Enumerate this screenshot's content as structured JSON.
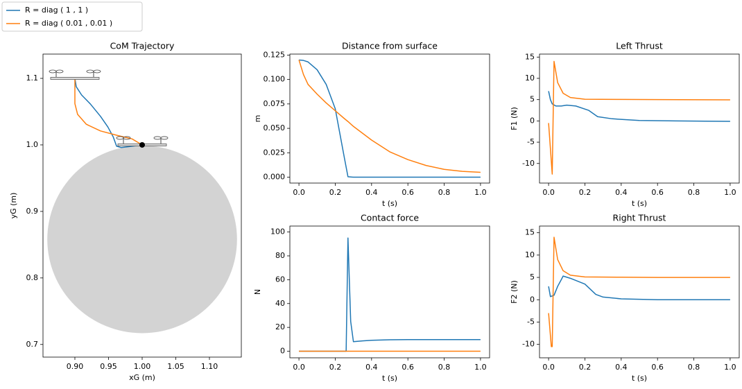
{
  "chart_data": [
    {
      "type": "line",
      "title": "CoM Trajectory",
      "xlabel": "xG (m)",
      "ylabel": "yG (m)",
      "xlim": [
        0.8526,
        1.1474
      ],
      "ylim": [
        0.681,
        1.1365
      ],
      "xticks": [
        {
          "value": 0.9,
          "label": "0.90"
        },
        0.95,
        {
          "value": 1.0,
          "label": "1.00"
        },
        1.05,
        {
          "value": 1.1,
          "label": "1.10"
        }
      ],
      "yticks": [
        0.7,
        0.8,
        0.9,
        {
          "value": 1.0,
          "label": "1.0"
        },
        1.1
      ],
      "circle": {
        "x": 1.0,
        "y": 0.858,
        "r": 0.141,
        "color": "#d3d3d3"
      },
      "series": [
        {
          "name": "R = diag ( 1 , 1 )",
          "color": "#1f77b4",
          "x": [
            0.9,
            0.902,
            0.91,
            0.923,
            0.938,
            0.949,
            0.957,
            0.962,
            0.969,
            0.985,
            1.0
          ],
          "values": [
            1.1,
            1.0875,
            1.075,
            1.0615,
            1.043,
            1.027,
            1.012,
            0.998,
            0.996,
            0.998,
            1.0
          ]
        },
        {
          "name": "R = diag ( 0.01 , 0.01 )",
          "color": "#ff7f0e",
          "x": [
            0.9,
            0.9,
            0.904,
            0.917,
            0.938,
            0.964,
            0.985,
            1.0
          ],
          "values": [
            1.1,
            1.062,
            1.046,
            1.031,
            1.021,
            1.014,
            1.009,
            1.0
          ]
        }
      ]
    },
    {
      "type": "line",
      "title": "Distance from surface",
      "xlabel": "t (s)",
      "ylabel": "m",
      "xlim": [
        -0.05,
        1.05
      ],
      "ylim": [
        -0.006,
        0.126
      ],
      "xticks": [
        {
          "value": 0,
          "label": "0.0"
        },
        0.2,
        0.4,
        0.6,
        0.8,
        {
          "value": 1,
          "label": "1.0"
        }
      ],
      "yticks": [
        {
          "value": 0,
          "label": "0.000"
        },
        0.025,
        {
          "value": 0.05,
          "label": "0.050"
        },
        0.075,
        {
          "value": 0.1,
          "label": "0.100"
        },
        0.125
      ],
      "x": [
        0,
        0.025,
        0.05,
        0.1,
        0.15,
        0.2,
        0.25,
        0.27,
        0.3,
        0.4,
        0.5,
        0.6,
        0.7,
        0.8,
        0.9,
        1.0
      ],
      "series": [
        {
          "color": "#1f77b4",
          "values": [
            0.12,
            0.1195,
            0.118,
            0.11,
            0.095,
            0.07,
            0.02,
            0.0005,
            0,
            0,
            0,
            0,
            0,
            0,
            0,
            0
          ]
        },
        {
          "color": "#ff7f0e",
          "values": [
            0.12,
            0.105,
            0.095,
            0.085,
            0.076,
            0.068,
            0.06,
            0.057,
            0.052,
            0.038,
            0.026,
            0.018,
            0.012,
            0.008,
            0.006,
            0.005
          ]
        }
      ]
    },
    {
      "type": "line",
      "title": "Contact force",
      "xlabel": "t (s)",
      "ylabel": "N",
      "xlim": [
        -0.05,
        1.05
      ],
      "ylim": [
        -5.5,
        105
      ],
      "xticks": [
        {
          "value": 0,
          "label": "0.0"
        },
        0.2,
        0.4,
        0.6,
        0.8,
        {
          "value": 1,
          "label": "1.0"
        }
      ],
      "yticks": [
        0,
        20,
        40,
        60,
        80,
        100
      ],
      "x": [
        0,
        0.26,
        0.27,
        0.285,
        0.3,
        0.35,
        0.4,
        0.5,
        0.6,
        0.8,
        1.0
      ],
      "series": [
        {
          "color": "#1f77b4",
          "values": [
            0,
            0,
            95,
            25,
            8,
            8.7,
            9.2,
            9.6,
            9.8,
            9.8,
            9.8
          ]
        },
        {
          "color": "#ff7f0e",
          "values": [
            0,
            0,
            0,
            0,
            0,
            0,
            0,
            0,
            0,
            0,
            0
          ]
        }
      ]
    },
    {
      "type": "line",
      "title": "Left Thrust",
      "xlabel": "t (s)",
      "ylabel": "F1 (N)",
      "xlim": [
        -0.05,
        1.05
      ],
      "ylim": [
        -14.6,
        15.7
      ],
      "xticks": [
        {
          "value": 0,
          "label": "0.0"
        },
        0.2,
        0.4,
        0.6,
        0.8,
        {
          "value": 1,
          "label": "1.0"
        }
      ],
      "yticks": [
        -10,
        -5,
        0,
        5,
        10,
        15
      ],
      "series": [
        {
          "color": "#1f77b4",
          "x": [
            0,
            0.01,
            0.02,
            0.04,
            0.07,
            0.1,
            0.15,
            0.22,
            0.27,
            0.35,
            0.5,
            0.7,
            1.0
          ],
          "values": [
            7,
            5,
            4,
            3.5,
            3.5,
            3.7,
            3.5,
            2.5,
            1.0,
            0.5,
            0.1,
            0,
            -0.1
          ]
        },
        {
          "color": "#ff7f0e",
          "x": [
            0,
            0.02,
            0.03,
            0.05,
            0.08,
            0.12,
            0.2,
            0.4,
            0.6,
            1.0
          ],
          "values": [
            -0.5,
            -12.5,
            14,
            9,
            6.5,
            5.5,
            5.1,
            5.05,
            5,
            4.95
          ]
        }
      ]
    },
    {
      "type": "line",
      "title": "Right Thrust",
      "xlabel": "t (s)",
      "ylabel": "F2 (N)",
      "xlim": [
        -0.05,
        1.05
      ],
      "ylim": [
        -13,
        16.5
      ],
      "xticks": [
        {
          "value": 0,
          "label": "0.0"
        },
        0.2,
        0.4,
        0.6,
        0.8,
        {
          "value": 1,
          "label": "1.0"
        }
      ],
      "yticks": [
        -10,
        -5,
        0,
        5,
        10,
        15
      ],
      "series": [
        {
          "color": "#1f77b4",
          "x": [
            0,
            0.01,
            0.03,
            0.05,
            0.07,
            0.08,
            0.12,
            0.2,
            0.26,
            0.3,
            0.4,
            0.6,
            1.0
          ],
          "values": [
            3,
            0.7,
            1.0,
            3,
            4.5,
            5.3,
            4.8,
            3.5,
            1.2,
            0.6,
            0.2,
            0,
            0
          ]
        },
        {
          "color": "#ff7f0e",
          "x": [
            0,
            0.015,
            0.02,
            0.03,
            0.05,
            0.08,
            0.12,
            0.2,
            0.4,
            0.6,
            1.0
          ],
          "values": [
            -3,
            -10.5,
            -10.5,
            14,
            9,
            6.5,
            5.5,
            5.1,
            5.05,
            5,
            5
          ]
        }
      ]
    }
  ]
}
